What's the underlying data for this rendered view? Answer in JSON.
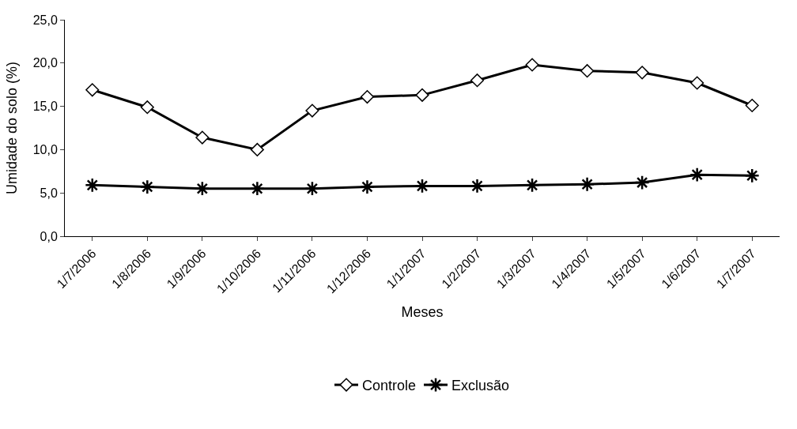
{
  "chart_data": {
    "type": "line",
    "xlabel": "Meses",
    "ylabel": "Umidade do solo (%)",
    "categories": [
      "1/7/2006",
      "1/8/2006",
      "1/9/2006",
      "1/10/2006",
      "1/11/2006",
      "1/12/2006",
      "1/1/2007",
      "1/2/2007",
      "1/3/2007",
      "1/4/2007",
      "1/5/2007",
      "1/6/2007",
      "1/7/2007"
    ],
    "series": [
      {
        "name": "Controle",
        "color": "#000000",
        "marker": "diamond",
        "values": [
          16.9,
          14.9,
          11.4,
          10.0,
          14.5,
          16.1,
          16.3,
          18.0,
          19.8,
          19.1,
          18.9,
          17.7,
          15.1
        ]
      },
      {
        "name": "Exclusão",
        "color": "#000000",
        "marker": "cross",
        "values": [
          5.9,
          5.7,
          5.5,
          5.5,
          5.5,
          5.7,
          5.8,
          5.8,
          5.9,
          6.0,
          6.2,
          7.1,
          7.0
        ]
      }
    ],
    "ylim": [
      0,
      25
    ],
    "yticks": [
      {
        "value": 0,
        "label": "0,0"
      },
      {
        "value": 5,
        "label": "5,0"
      },
      {
        "value": 10,
        "label": "10,0"
      },
      {
        "value": 15,
        "label": "15,0"
      },
      {
        "value": 20,
        "label": "20,0"
      },
      {
        "value": 25,
        "label": "25,0"
      }
    ],
    "legend": "bottom",
    "line_style": "solid"
  }
}
